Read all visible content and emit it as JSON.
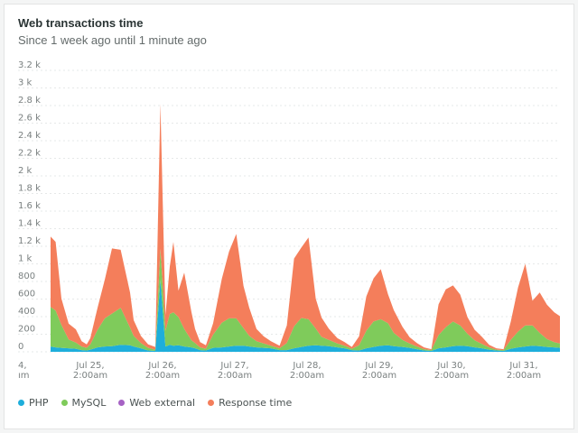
{
  "header": {
    "title": "Web transactions time",
    "subtitle": "Since 1 week ago until 1 minute ago"
  },
  "chart_data": {
    "type": "area",
    "stacked": true,
    "title": "Web transactions time",
    "subtitle": "Since 1 week ago until 1 minute ago",
    "ylim": [
      0,
      3200
    ],
    "y_ticks": [
      {
        "value": 0,
        "label": "0"
      },
      {
        "value": 200,
        "label": "200"
      },
      {
        "value": 400,
        "label": "400"
      },
      {
        "value": 600,
        "label": "600"
      },
      {
        "value": 800,
        "label": "800"
      },
      {
        "value": 1000,
        "label": "1 k"
      },
      {
        "value": 1200,
        "label": "1.2 k"
      },
      {
        "value": 1400,
        "label": "1.4 k"
      },
      {
        "value": 1600,
        "label": "1.6 k"
      },
      {
        "value": 1800,
        "label": "1.8 k"
      },
      {
        "value": 2000,
        "label": "2 k"
      },
      {
        "value": 2200,
        "label": "2.2 k"
      },
      {
        "value": 2400,
        "label": "2.4 k"
      },
      {
        "value": 2600,
        "label": "2.6 k"
      },
      {
        "value": 2800,
        "label": "2.8 k"
      },
      {
        "value": 3000,
        "label": "3 k"
      },
      {
        "value": 3200,
        "label": "3.2 k"
      }
    ],
    "x_range_days": [
      0,
      7.5
    ],
    "x_ticks": [
      {
        "day": 0,
        "line1": "4,",
        "line2": "ım"
      },
      {
        "day": 1,
        "line1": "Jul 25,",
        "line2": "2:00am"
      },
      {
        "day": 2,
        "line1": "Jul 26,",
        "line2": "2:00am"
      },
      {
        "day": 3,
        "line1": "Jul 27,",
        "line2": "2:00am"
      },
      {
        "day": 4,
        "line1": "Jul 28,",
        "line2": "2:00am"
      },
      {
        "day": 5,
        "line1": "Jul 29,",
        "line2": "2:00am"
      },
      {
        "day": 6,
        "line1": "Jul 30,",
        "line2": "2:00am"
      },
      {
        "day": 7,
        "line1": "Jul 31,",
        "line2": "2:00am"
      }
    ],
    "x": [
      0.45,
      0.52,
      0.6,
      0.7,
      0.8,
      0.88,
      0.95,
      1.0,
      1.1,
      1.2,
      1.3,
      1.42,
      1.55,
      1.6,
      1.7,
      1.8,
      1.9,
      1.97,
      2.04,
      2.1,
      2.15,
      2.22,
      2.3,
      2.4,
      2.45,
      2.52,
      2.6,
      2.7,
      2.82,
      2.92,
      3.02,
      3.12,
      3.2,
      3.3,
      3.4,
      3.5,
      3.62,
      3.72,
      3.82,
      3.92,
      4.02,
      4.12,
      4.2,
      4.3,
      4.42,
      4.52,
      4.62,
      4.72,
      4.82,
      4.92,
      5.02,
      5.12,
      5.2,
      5.32,
      5.42,
      5.52,
      5.62,
      5.72,
      5.82,
      5.92,
      6.02,
      6.12,
      6.22,
      6.32,
      6.42,
      6.52,
      6.62,
      6.72,
      6.82,
      6.92,
      7.02,
      7.12,
      7.22,
      7.32,
      7.42,
      7.5
    ],
    "series": [
      {
        "name": "PHP",
        "color": "#1eaedb",
        "values": [
          60,
          50,
          45,
          40,
          35,
          20,
          15,
          25,
          50,
          60,
          65,
          80,
          75,
          60,
          40,
          15,
          10,
          820,
          60,
          80,
          70,
          75,
          60,
          50,
          40,
          20,
          15,
          45,
          50,
          60,
          70,
          70,
          60,
          50,
          45,
          40,
          20,
          20,
          40,
          55,
          70,
          75,
          70,
          65,
          50,
          40,
          20,
          15,
          40,
          55,
          70,
          75,
          65,
          55,
          45,
          30,
          15,
          10,
          40,
          50,
          65,
          70,
          65,
          50,
          40,
          25,
          15,
          10,
          35,
          50,
          60,
          70,
          65,
          55,
          50,
          45
        ]
      },
      {
        "name": "MySQL",
        "color": "#7fcb5b",
        "values": [
          450,
          420,
          260,
          100,
          70,
          40,
          30,
          60,
          200,
          320,
          370,
          420,
          200,
          120,
          60,
          30,
          15,
          350,
          180,
          350,
          380,
          320,
          200,
          80,
          60,
          30,
          20,
          150,
          280,
          320,
          310,
          200,
          120,
          70,
          50,
          30,
          20,
          80,
          250,
          330,
          300,
          190,
          100,
          70,
          45,
          30,
          15,
          60,
          200,
          290,
          300,
          250,
          150,
          80,
          50,
          30,
          15,
          10,
          150,
          230,
          280,
          230,
          140,
          80,
          50,
          25,
          10,
          10,
          100,
          180,
          240,
          230,
          150,
          90,
          60,
          50
        ]
      },
      {
        "name": "Web external",
        "color": "#a662c4",
        "values": [
          0,
          0,
          0,
          0,
          0,
          0,
          0,
          0,
          0,
          0,
          0,
          0,
          0,
          0,
          0,
          0,
          0,
          0,
          0,
          0,
          0,
          0,
          0,
          0,
          0,
          0,
          0,
          0,
          0,
          0,
          0,
          0,
          0,
          0,
          0,
          0,
          0,
          0,
          0,
          0,
          0,
          0,
          0,
          0,
          0,
          0,
          0,
          0,
          0,
          0,
          0,
          0,
          0,
          0,
          0,
          0,
          0,
          0,
          0,
          0,
          0,
          0,
          0,
          0,
          0,
          0,
          0,
          0,
          0,
          0,
          0,
          0,
          0,
          0,
          0,
          0
        ]
      },
      {
        "name": "Response time",
        "color": "#f47e5b",
        "values": [
          800,
          780,
          300,
          180,
          150,
          60,
          40,
          70,
          250,
          440,
          740,
          660,
          400,
          180,
          80,
          40,
          30,
          1650,
          180,
          540,
          800,
          300,
          640,
          320,
          160,
          60,
          40,
          130,
          500,
          760,
          960,
          480,
          320,
          140,
          80,
          50,
          30,
          200,
          770,
          800,
          930,
          340,
          220,
          130,
          60,
          40,
          20,
          100,
          390,
          490,
          570,
          330,
          260,
          150,
          70,
          40,
          20,
          10,
          350,
          430,
          410,
          350,
          190,
          120,
          80,
          30,
          15,
          10,
          210,
          500,
          700,
          280,
          460,
          390,
          340,
          310
        ]
      }
    ]
  },
  "legend": {
    "items": [
      {
        "label": "PHP",
        "color": "#1eaedb"
      },
      {
        "label": "MySQL",
        "color": "#7fcb5b"
      },
      {
        "label": "Web external",
        "color": "#a662c4"
      },
      {
        "label": "Response time",
        "color": "#f47e5b"
      }
    ]
  }
}
